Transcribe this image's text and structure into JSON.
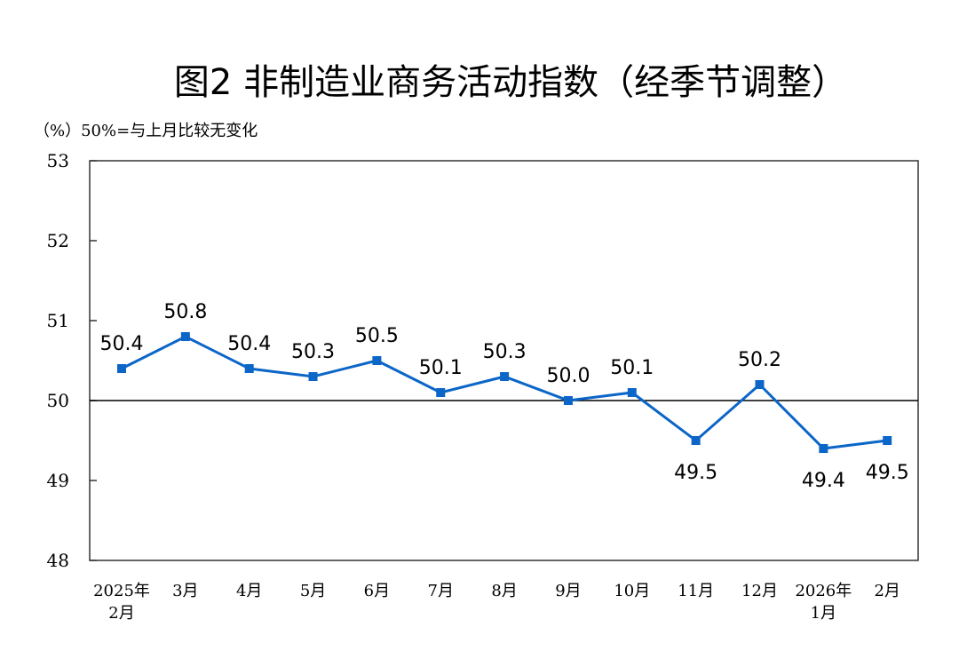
{
  "chart_data": {
    "type": "line",
    "title": "图2  非制造业商务活动指数（经季节调整）",
    "ylabel": "（%）50%=与上月比较无变化",
    "categories": [
      [
        "2025年",
        "2月"
      ],
      [
        "3月"
      ],
      [
        "4月"
      ],
      [
        "5月"
      ],
      [
        "6月"
      ],
      [
        "7月"
      ],
      [
        "8月"
      ],
      [
        "9月"
      ],
      [
        "10月"
      ],
      [
        "11月"
      ],
      [
        "12月"
      ],
      [
        "2026年",
        "1月"
      ],
      [
        "2月"
      ]
    ],
    "values": [
      50.4,
      50.8,
      50.4,
      50.3,
      50.5,
      50.1,
      50.3,
      50.0,
      50.1,
      49.5,
      50.2,
      49.4,
      49.5
    ],
    "data_labels": [
      "50.4",
      "50.8",
      "50.4",
      "50.3",
      "50.5",
      "50.1",
      "50.3",
      "50.0",
      "50.1",
      "49.5",
      "50.2",
      "49.4",
      "49.5"
    ],
    "label_positions": [
      "above",
      "above",
      "above",
      "above",
      "above",
      "above",
      "above",
      "above",
      "above",
      "below",
      "above",
      "below",
      "below"
    ],
    "ylim": [
      48,
      53
    ],
    "yticks": [
      48,
      49,
      50,
      51,
      52,
      53
    ],
    "reference_line": 50,
    "grid": false,
    "legend": "none",
    "colors": {
      "series": "#0b66c8",
      "axis": "#000000"
    }
  }
}
